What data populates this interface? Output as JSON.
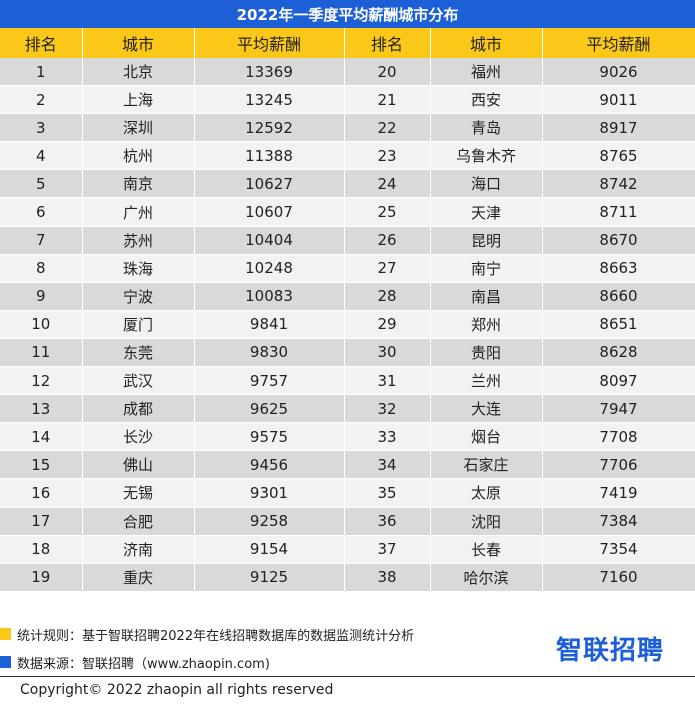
{
  "title": "2022年一季度平均薪酬城市分布",
  "headers": [
    "排名",
    "城市",
    "平均薪酬",
    "排名",
    "城市",
    "平均薪酬"
  ],
  "rows": [
    [
      "1",
      "北京",
      "13369",
      "20",
      "福州",
      "9026"
    ],
    [
      "2",
      "上海",
      "13245",
      "21",
      "西安",
      "9011"
    ],
    [
      "3",
      "深圳",
      "12592",
      "22",
      "青岛",
      "8917"
    ],
    [
      "4",
      "杭州",
      "11388",
      "23",
      "乌鲁木齐",
      "8765"
    ],
    [
      "5",
      "南京",
      "10627",
      "24",
      "海口",
      "8742"
    ],
    [
      "6",
      "广州",
      "10607",
      "25",
      "天津",
      "8711"
    ],
    [
      "7",
      "苏州",
      "10404",
      "26",
      "昆明",
      "8670"
    ],
    [
      "8",
      "珠海",
      "10248",
      "27",
      "南宁",
      "8663"
    ],
    [
      "9",
      "宁波",
      "10083",
      "28",
      "南昌",
      "8660"
    ],
    [
      "10",
      "厦门",
      "9841",
      "29",
      "郑州",
      "8651"
    ],
    [
      "11",
      "东莞",
      "9830",
      "30",
      "贵阳",
      "8628"
    ],
    [
      "12",
      "武汉",
      "9757",
      "31",
      "兰州",
      "8097"
    ],
    [
      "13",
      "成都",
      "9625",
      "32",
      "大连",
      "7947"
    ],
    [
      "14",
      "长沙",
      "9575",
      "33",
      "烟台",
      "7708"
    ],
    [
      "15",
      "佛山",
      "9456",
      "34",
      "石家庄",
      "7706"
    ],
    [
      "16",
      "无锡",
      "9301",
      "35",
      "太原",
      "7419"
    ],
    [
      "17",
      "合肥",
      "9258",
      "36",
      "沈阳",
      "7384"
    ],
    [
      "18",
      "济南",
      "9154",
      "37",
      "长春",
      "7354"
    ],
    [
      "19",
      "重庆",
      "9125",
      "38",
      "哈尔滨",
      "7160"
    ]
  ],
  "notes": {
    "rule": "统计规则：基于智联招聘2022年在线招聘数据库的数据监测统计分析",
    "rule_color": "#fbc81a",
    "source": "数据来源：智联招聘（www.zhaopin.com)",
    "source_color": "#1d5fd6"
  },
  "logo": "智联招聘",
  "copyright": "Copyright© 2022 zhaopin all rights reserved"
}
